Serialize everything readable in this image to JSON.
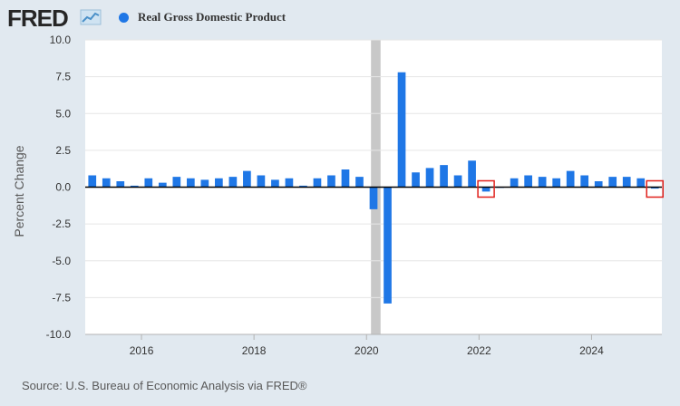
{
  "header": {
    "logo_text": "FRED",
    "legend_label": "Real Gross Domestic Product",
    "series_color": "#1f77e6"
  },
  "footer": {
    "source": "Source: U.S. Bureau of Economic Analysis via FRED®"
  },
  "chart_data": {
    "type": "bar",
    "title": "",
    "ylabel": "Percent Change",
    "ylim": [
      -10.0,
      10.0
    ],
    "yticks": [
      "10.0",
      "7.5",
      "5.0",
      "2.5",
      "0.0",
      "-2.5",
      "-5.0",
      "-7.5",
      "-10.0"
    ],
    "ytick_values": [
      10.0,
      7.5,
      5.0,
      2.5,
      0.0,
      -2.5,
      -5.0,
      -7.5,
      -10.0
    ],
    "xticks": [
      "2016",
      "2018",
      "2020",
      "2022",
      "2024"
    ],
    "xtick_values": [
      2016,
      2018,
      2020,
      2022,
      2024
    ],
    "x_range": [
      2015.0,
      2025.25
    ],
    "recession_shading": [
      [
        2020.08,
        2020.25
      ]
    ],
    "highlighted_quarters": [
      "2022Q1",
      "2025Q1"
    ],
    "grid": "horizontal",
    "legend_placement": "top-left",
    "categories": [
      "2015Q1",
      "2015Q2",
      "2015Q3",
      "2015Q4",
      "2016Q1",
      "2016Q2",
      "2016Q3",
      "2016Q4",
      "2017Q1",
      "2017Q2",
      "2017Q3",
      "2017Q4",
      "2018Q1",
      "2018Q2",
      "2018Q3",
      "2018Q4",
      "2019Q1",
      "2019Q2",
      "2019Q3",
      "2019Q4",
      "2020Q1",
      "2020Q2",
      "2020Q3",
      "2020Q4",
      "2021Q1",
      "2021Q2",
      "2021Q3",
      "2021Q4",
      "2022Q1",
      "2022Q2",
      "2022Q3",
      "2022Q4",
      "2023Q1",
      "2023Q2",
      "2023Q3",
      "2023Q4",
      "2024Q1",
      "2024Q2",
      "2024Q3",
      "2024Q4",
      "2025Q1"
    ],
    "x": [
      2015.0,
      2015.25,
      2015.5,
      2015.75,
      2016.0,
      2016.25,
      2016.5,
      2016.75,
      2017.0,
      2017.25,
      2017.5,
      2017.75,
      2018.0,
      2018.25,
      2018.5,
      2018.75,
      2019.0,
      2019.25,
      2019.5,
      2019.75,
      2020.0,
      2020.25,
      2020.5,
      2020.75,
      2021.0,
      2021.25,
      2021.5,
      2021.75,
      2022.0,
      2022.25,
      2022.5,
      2022.75,
      2023.0,
      2023.25,
      2023.5,
      2023.75,
      2024.0,
      2024.25,
      2024.5,
      2024.75,
      2025.0
    ],
    "series": [
      {
        "name": "Real Gross Domestic Product",
        "values": [
          0.8,
          0.6,
          0.4,
          0.1,
          0.6,
          0.3,
          0.7,
          0.6,
          0.5,
          0.6,
          0.7,
          1.1,
          0.8,
          0.5,
          0.6,
          0.1,
          0.6,
          0.8,
          1.2,
          0.7,
          -1.5,
          -7.9,
          7.8,
          1.0,
          1.3,
          1.5,
          0.8,
          1.8,
          -0.3,
          0.0,
          0.6,
          0.8,
          0.7,
          0.6,
          1.1,
          0.8,
          0.4,
          0.7,
          0.7,
          0.6,
          -0.1
        ]
      }
    ]
  }
}
